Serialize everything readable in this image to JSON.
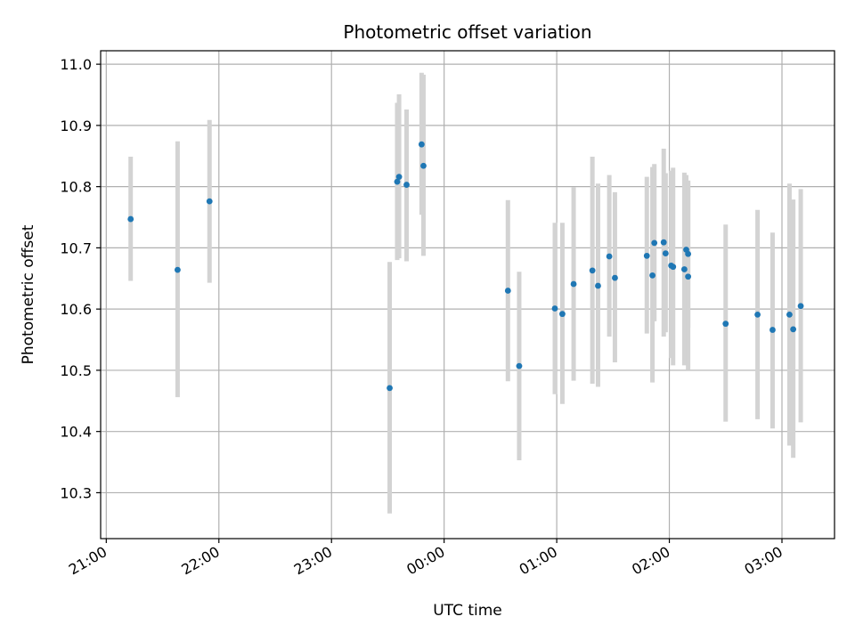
{
  "chart_data": {
    "type": "scatter",
    "title": "Photometric offset variation",
    "xlabel": "UTC time",
    "ylabel": "Photometric offset",
    "x_unit": "UTC datetime",
    "xlim": [
      "20:57",
      "03:28"
    ],
    "ylim": [
      10.225,
      11.022
    ],
    "grid": true,
    "x_ticks": [
      {
        "value": "21:00",
        "label": "21:00"
      },
      {
        "value": "22:00",
        "label": "22:00"
      },
      {
        "value": "23:00",
        "label": "23:00"
      },
      {
        "value": "00:00",
        "label": "00:00"
      },
      {
        "value": "01:00",
        "label": "01:00"
      },
      {
        "value": "02:00",
        "label": "02:00"
      },
      {
        "value": "03:00",
        "label": "03:00"
      }
    ],
    "y_ticks": [
      10.3,
      10.4,
      10.5,
      10.6,
      10.7,
      10.8,
      10.9,
      11.0
    ],
    "y_tick_labels": [
      "10.3",
      "10.4",
      "10.5",
      "10.6",
      "10.7",
      "10.8",
      "10.9",
      "11.0"
    ],
    "colors": {
      "point": "#1f77b4",
      "errorbar": "#d3d3d3",
      "grid": "#b0b0b0",
      "axes": "#000000"
    },
    "points": [
      {
        "x": "21:13",
        "y": 10.747,
        "low": 10.646,
        "high": 10.849
      },
      {
        "x": "21:38",
        "y": 10.664,
        "low": 10.456,
        "high": 10.874
      },
      {
        "x": "21:55",
        "y": 10.776,
        "low": 10.643,
        "high": 10.909
      },
      {
        "x": "23:31",
        "y": 10.471,
        "low": 10.266,
        "high": 10.677
      },
      {
        "x": "23:35",
        "y": 10.808,
        "low": 10.68,
        "high": 10.937
      },
      {
        "x": "23:36",
        "y": 10.816,
        "low": 10.683,
        "high": 10.951
      },
      {
        "x": "23:40",
        "y": 10.803,
        "low": 10.678,
        "high": 10.926
      },
      {
        "x": "23:48",
        "y": 10.869,
        "low": 10.754,
        "high": 10.986
      },
      {
        "x": "23:49",
        "y": 10.834,
        "low": 10.687,
        "high": 10.983
      },
      {
        "x": "00:34",
        "y": 10.63,
        "low": 10.482,
        "high": 10.778
      },
      {
        "x": "00:40",
        "y": 10.507,
        "low": 10.353,
        "high": 10.661
      },
      {
        "x": "00:59",
        "y": 10.601,
        "low": 10.461,
        "high": 10.741
      },
      {
        "x": "01:03",
        "y": 10.592,
        "low": 10.445,
        "high": 10.741
      },
      {
        "x": "01:09",
        "y": 10.641,
        "low": 10.483,
        "high": 10.799
      },
      {
        "x": "01:19",
        "y": 10.663,
        "low": 10.478,
        "high": 10.849
      },
      {
        "x": "01:22",
        "y": 10.638,
        "low": 10.473,
        "high": 10.805
      },
      {
        "x": "01:28",
        "y": 10.686,
        "low": 10.555,
        "high": 10.819
      },
      {
        "x": "01:31",
        "y": 10.651,
        "low": 10.513,
        "high": 10.791
      },
      {
        "x": "01:48",
        "y": 10.687,
        "low": 10.56,
        "high": 10.816
      },
      {
        "x": "01:51",
        "y": 10.655,
        "low": 10.48,
        "high": 10.832
      },
      {
        "x": "01:52",
        "y": 10.708,
        "low": 10.58,
        "high": 10.837
      },
      {
        "x": "01:57",
        "y": 10.709,
        "low": 10.555,
        "high": 10.862
      },
      {
        "x": "01:58",
        "y": 10.691,
        "low": 10.562,
        "high": 10.822
      },
      {
        "x": "02:01",
        "y": 10.671,
        "low": 10.52,
        "high": 10.826
      },
      {
        "x": "02:02",
        "y": 10.669,
        "low": 10.508,
        "high": 10.831
      },
      {
        "x": "02:08",
        "y": 10.665,
        "low": 10.508,
        "high": 10.823
      },
      {
        "x": "02:09",
        "y": 10.697,
        "low": 10.573,
        "high": 10.819
      },
      {
        "x": "02:10",
        "y": 10.653,
        "low": 10.5,
        "high": 10.809
      },
      {
        "x": "02:10",
        "y": 10.69,
        "low": 10.57,
        "high": 10.81
      },
      {
        "x": "02:30",
        "y": 10.576,
        "low": 10.416,
        "high": 10.738
      },
      {
        "x": "02:47",
        "y": 10.591,
        "low": 10.42,
        "high": 10.762
      },
      {
        "x": "02:55",
        "y": 10.566,
        "low": 10.405,
        "high": 10.725
      },
      {
        "x": "03:04",
        "y": 10.591,
        "low": 10.377,
        "high": 10.805
      },
      {
        "x": "03:06",
        "y": 10.567,
        "low": 10.357,
        "high": 10.779
      },
      {
        "x": "03:10",
        "y": 10.605,
        "low": 10.415,
        "high": 10.796
      }
    ]
  }
}
